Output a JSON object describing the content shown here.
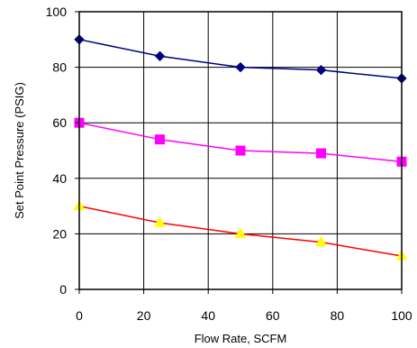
{
  "chart_data": {
    "type": "line",
    "title": "",
    "xlabel": "Flow Rate, SCFM",
    "ylabel": "Set Point Pressure (PSIG)",
    "xlim": [
      0,
      100
    ],
    "ylim": [
      0,
      100
    ],
    "xticks": [
      0,
      20,
      40,
      60,
      80,
      100
    ],
    "yticks": [
      0,
      20,
      40,
      60,
      80,
      100
    ],
    "grid": true,
    "legend": "none",
    "series": [
      {
        "color": "#000080",
        "marker": "diamond",
        "markerColor": "#000080",
        "x": [
          0,
          25,
          50,
          75,
          100
        ],
        "y": [
          90,
          84,
          80,
          79,
          76
        ]
      },
      {
        "color": "#FF00FF",
        "marker": "square",
        "markerColor": "#FF00FF",
        "x": [
          0,
          25,
          50,
          75,
          100
        ],
        "y": [
          60,
          54,
          50,
          49,
          46
        ]
      },
      {
        "color": "#FF0000",
        "marker": "triangle",
        "markerColor": "#FFFF00",
        "x": [
          0,
          25,
          50,
          75,
          100
        ],
        "y": [
          30,
          24,
          20,
          17,
          12
        ]
      }
    ]
  }
}
